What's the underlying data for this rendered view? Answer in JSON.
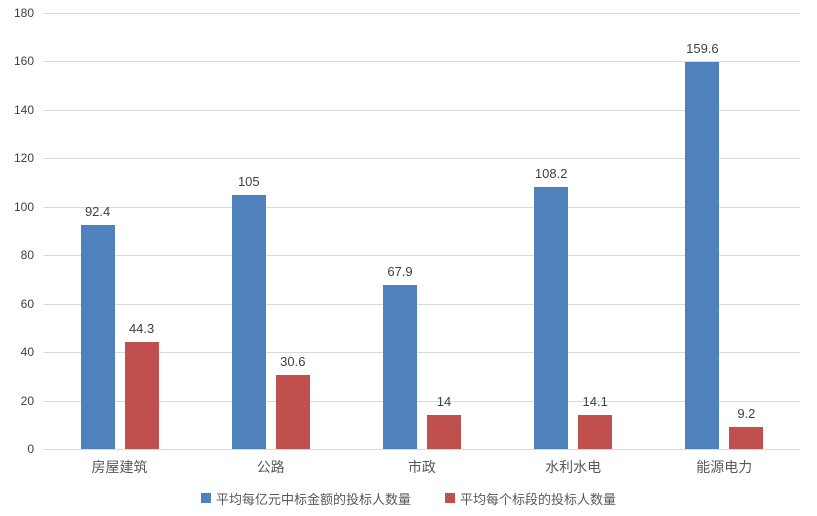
{
  "chart_data": {
    "type": "bar",
    "categories": [
      "房屋建筑",
      "公路",
      "市政",
      "水利水电",
      "能源电力"
    ],
    "series": [
      {
        "name": "平均每亿元中标金额的投标人数量",
        "color": "#4F81BD",
        "values": [
          92.4,
          105,
          67.9,
          108.2,
          159.6
        ],
        "labels": [
          "92.4",
          "105",
          "67.9",
          "108.2",
          "159.6"
        ]
      },
      {
        "name": "平均每个标段的投标人数量",
        "color": "#C0504D",
        "values": [
          44.3,
          30.6,
          14,
          14.1,
          9.2
        ],
        "labels": [
          "44.3",
          "30.6",
          "14",
          "14.1",
          "9.2"
        ]
      }
    ],
    "title": "",
    "xlabel": "",
    "ylabel": "",
    "ylim": [
      0,
      180
    ],
    "yticks": [
      0,
      20,
      40,
      60,
      80,
      100,
      120,
      140,
      160,
      180
    ],
    "grid": true,
    "legend_position": "bottom",
    "colors": {
      "gridline": "#d9d9d9",
      "axis_line": "#d9d9d9",
      "tick_text": "#404040",
      "category_text": "#595959",
      "value_label_text": "#404040",
      "background": "#ffffff"
    }
  }
}
